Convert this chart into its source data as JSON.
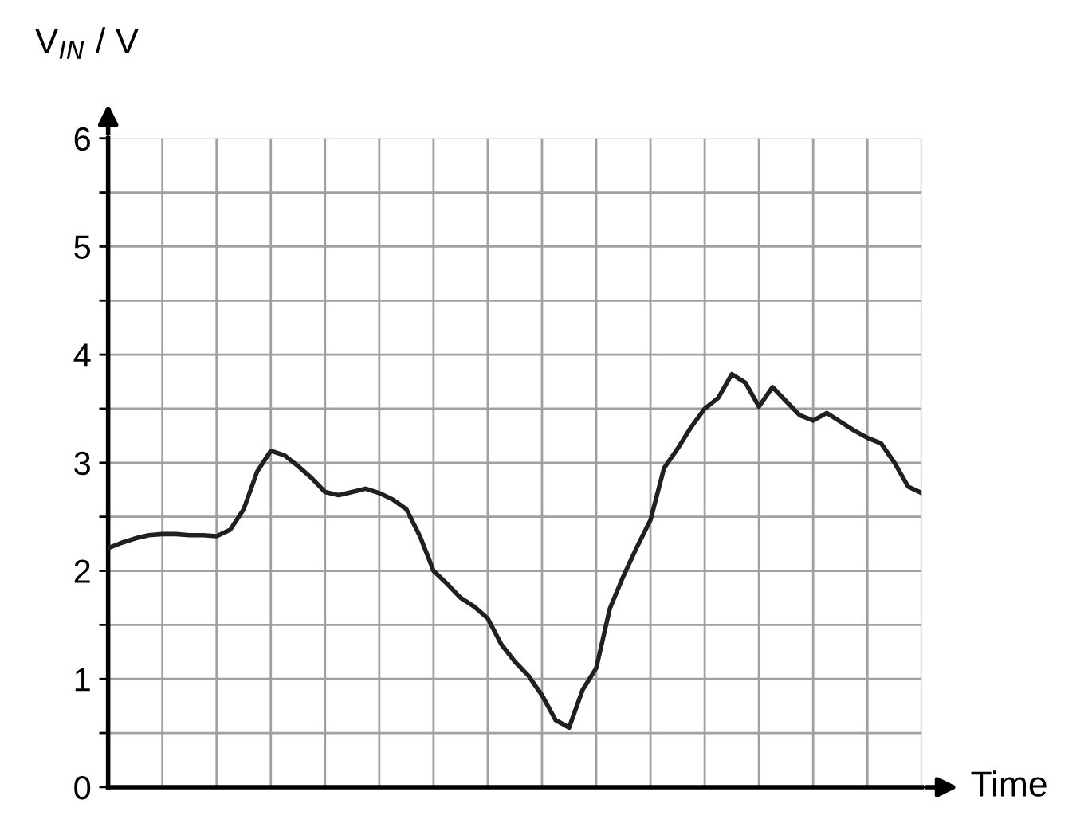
{
  "chart_data": {
    "type": "line",
    "xlabel": "Time",
    "ylabel": "V$_{IN}$ / V",
    "categories": [
      null,
      null,
      null,
      null,
      null,
      null,
      null,
      null,
      null,
      null,
      null,
      null,
      null,
      null,
      null,
      null,
      null,
      null,
      null,
      null,
      null,
      null,
      null,
      null,
      null,
      null,
      null,
      null,
      null,
      null,
      null,
      null,
      null,
      null,
      null,
      null,
      null,
      null,
      null,
      null,
      null,
      null,
      null,
      null,
      null,
      null,
      null,
      null,
      null,
      null,
      null,
      null,
      null,
      null,
      null,
      null,
      null,
      null,
      null,
      null,
      null
    ],
    "series": [
      {
        "color": "#231f20",
        "values": [
          2.21,
          2.26,
          2.3,
          2.33,
          2.34,
          2.34,
          2.33,
          2.33,
          2.32,
          2.38,
          2.57,
          2.92,
          3.11,
          3.07,
          2.97,
          2.86,
          2.73,
          2.7,
          2.73,
          2.76,
          2.72,
          2.66,
          2.57,
          2.32,
          2.0,
          1.88,
          1.75,
          1.67,
          1.56,
          1.32,
          1.16,
          1.03,
          0.85,
          0.62,
          0.55,
          0.9,
          1.1,
          1.65,
          1.95,
          2.22,
          2.47,
          2.95,
          3.13,
          3.33,
          3.5,
          3.6,
          3.82,
          3.74,
          3.52,
          3.7,
          3.57,
          3.44,
          3.39,
          3.46,
          3.38,
          3.3,
          3.23,
          3.18,
          3.0,
          2.78,
          2.72
        ]
      }
    ],
    "ylim": [
      0,
      6
    ],
    "yticks": [
      0,
      {
        "value": 0.5,
        "label": null
      },
      1,
      {
        "value": 1.5,
        "label": null
      },
      2,
      {
        "value": 2.5,
        "label": null
      },
      3,
      {
        "value": 3.5,
        "label": null
      },
      4,
      {
        "value": 4.5,
        "label": null
      },
      5,
      {
        "value": 5.5,
        "label": null
      },
      6
    ],
    "tick_labels": "y",
    "grid": true,
    "marker": "none",
    "line_style": "solid"
  }
}
